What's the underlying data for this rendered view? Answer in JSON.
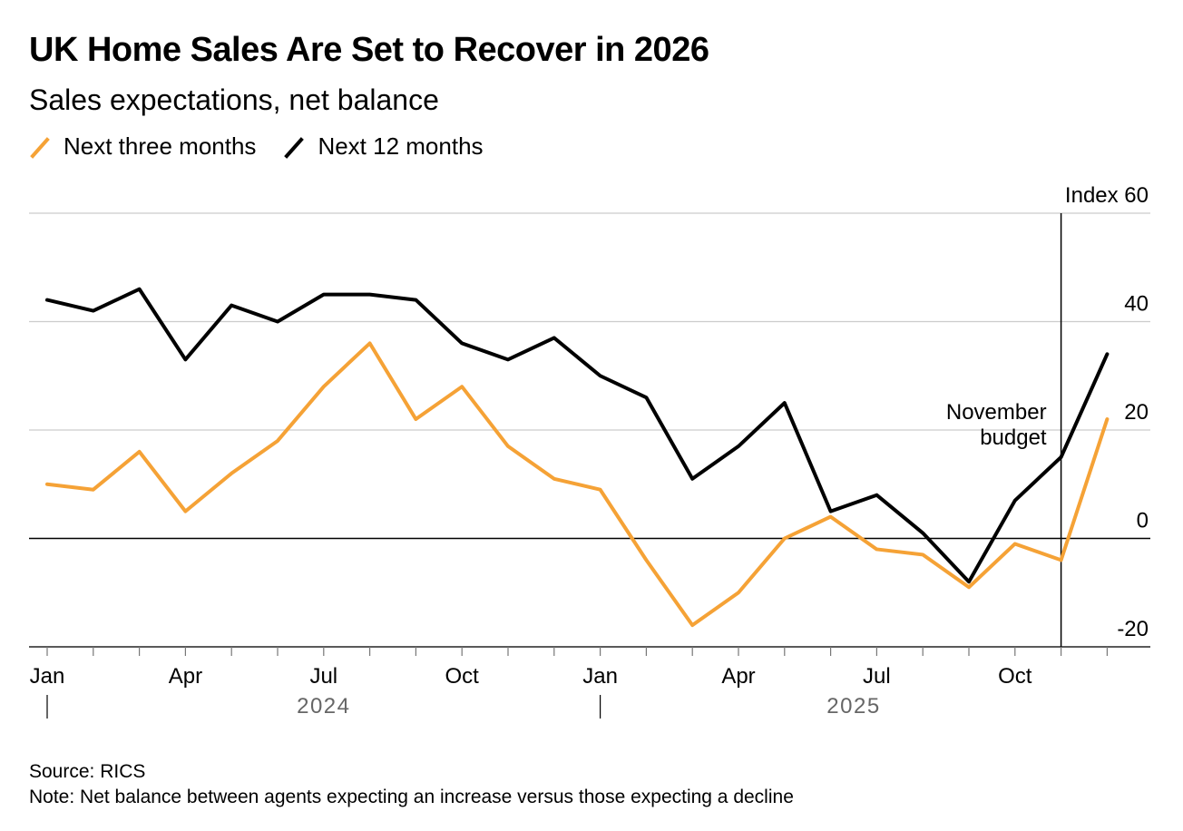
{
  "title": "UK Home Sales Are Set to Recover in 2026",
  "subtitle": "Sales expectations, net balance",
  "source": "Source: RICS",
  "note": "Note: Net balance between agents expecting an increase versus those expecting a decline",
  "colors": {
    "three_months": "#f5a236",
    "twelve_months": "#000000",
    "grid": "#cccccc",
    "axis_text": "#000000",
    "year_text": "#666666"
  },
  "chart_data": {
    "type": "line",
    "title": "UK Home Sales Are Set to Recover in 2026",
    "subtitle": "Sales expectations, net balance",
    "xlabel": "",
    "ylabel": "Index",
    "ylim": [
      -20,
      60
    ],
    "yticks": [
      -20,
      0,
      20,
      40,
      60
    ],
    "ytick_labels": [
      "-20",
      "0",
      "20",
      "40",
      "Index 60"
    ],
    "grid": true,
    "legend_position": "top-left",
    "x": [
      "Jan 2024",
      "Feb 2024",
      "Mar 2024",
      "Apr 2024",
      "May 2024",
      "Jun 2024",
      "Jul 2024",
      "Aug 2024",
      "Sep 2024",
      "Oct 2024",
      "Nov 2024",
      "Dec 2024",
      "Jan 2025",
      "Feb 2025",
      "Mar 2025",
      "Apr 2025",
      "May 2025",
      "Jun 2025",
      "Jul 2025",
      "Aug 2025",
      "Sep 2025",
      "Oct 2025",
      "Nov 2025",
      "Dec 2025"
    ],
    "x_ticks": [
      {
        "index": 0,
        "label": "Jan"
      },
      {
        "index": 3,
        "label": "Apr"
      },
      {
        "index": 6,
        "label": "Jul"
      },
      {
        "index": 9,
        "label": "Oct"
      },
      {
        "index": 12,
        "label": "Jan"
      },
      {
        "index": 15,
        "label": "Apr"
      },
      {
        "index": 18,
        "label": "Jul"
      },
      {
        "index": 21,
        "label": "Oct"
      }
    ],
    "years": [
      {
        "label": "2024",
        "center_index": 6,
        "start_index": 0
      },
      {
        "label": "2025",
        "center_index": 17.5,
        "start_index": 12
      }
    ],
    "series": [
      {
        "name": "Next three months",
        "color": "#f5a236",
        "values": [
          10,
          9,
          16,
          5,
          12,
          18,
          28,
          36,
          22,
          28,
          17,
          11,
          9,
          -4,
          -16,
          -10,
          0,
          4,
          -2,
          -3,
          -9,
          -1,
          -4,
          22
        ]
      },
      {
        "name": "Next 12 months",
        "color": "#000000",
        "values": [
          44,
          42,
          46,
          33,
          43,
          40,
          45,
          45,
          44,
          36,
          33,
          37,
          30,
          26,
          11,
          17,
          25,
          5,
          8,
          1,
          -8,
          7,
          15,
          34
        ]
      }
    ],
    "annotations": [
      {
        "text_lines": [
          "November",
          "budget"
        ],
        "x_index": 22
      }
    ]
  }
}
